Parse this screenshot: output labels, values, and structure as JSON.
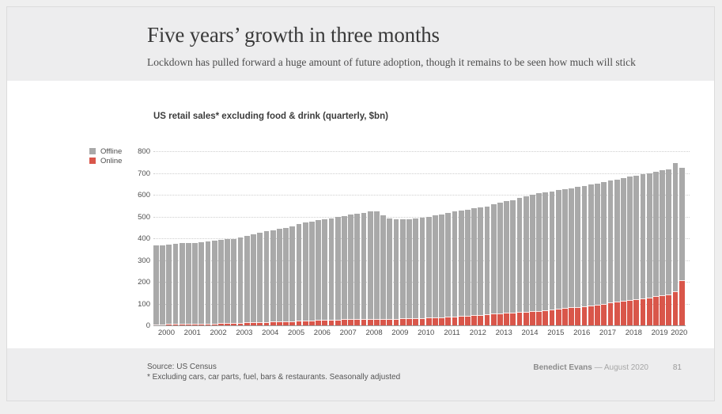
{
  "slide": {
    "header": {
      "title": "Five years’ growth in three months",
      "subtitle": "Lockdown has pulled forward a huge amount of future adoption, though it remains to be seen how much will stick"
    },
    "footer": {
      "source_line1": "Source: US Census",
      "source_line2": "* Excluding cars, car parts, fuel, bars & restaurants. Seasonally adjusted",
      "author": "Benedict Evans",
      "date": " — August 2020",
      "page_number": "81"
    }
  },
  "chart_data": {
    "type": "bar",
    "stacked": true,
    "title": "US retail sales* excluding food & drink (quarterly, $bn)",
    "xlabel": "",
    "ylabel": "",
    "ylim": [
      0,
      800
    ],
    "yticks": [
      0,
      100,
      200,
      300,
      400,
      500,
      600,
      700,
      800
    ],
    "grid": "horizontal-dotted",
    "legend_position": "outside-top-left",
    "x_unit": "quarter",
    "x_tick_labels": [
      "2000",
      "2001",
      "2002",
      "2003",
      "2004",
      "2005",
      "2006",
      "2007",
      "2008",
      "2009",
      "2010",
      "2011",
      "2012",
      "2013",
      "2014",
      "2015",
      "2016",
      "2017",
      "2018",
      "2019",
      "2020"
    ],
    "quarters_per_year": 4,
    "last_year_quarters": 2,
    "series": [
      {
        "name": "Offline",
        "color": "#a9a9a9",
        "values": [
          361,
          364,
          366,
          369,
          370,
          372,
          373,
          374,
          377,
          380,
          383,
          384,
          387,
          391,
          397,
          405,
          412,
          417,
          421,
          425,
          429,
          436,
          443,
          450,
          455,
          461,
          464,
          466,
          470,
          475,
          479,
          483,
          485,
          495,
          493,
          476,
          461,
          457,
          455,
          456,
          459,
          462,
          465,
          469,
          473,
          477,
          481,
          484,
          487,
          491,
          493,
          495,
          505,
          509,
          513,
          517,
          523,
          531,
          536,
          540,
          540,
          543,
          545,
          547,
          548,
          551,
          553,
          554,
          556,
          558,
          560,
          562,
          564,
          566,
          568,
          570,
          572,
          573,
          574,
          575,
          589,
          516
        ]
      },
      {
        "name": "Online",
        "color": "#d9564a",
        "values": [
          5,
          5,
          6,
          6,
          7,
          7,
          7,
          8,
          9,
          9,
          10,
          11,
          11,
          12,
          13,
          14,
          15,
          16,
          17,
          18,
          19,
          20,
          21,
          22,
          23,
          24,
          25,
          26,
          27,
          28,
          29,
          29,
          30,
          30,
          30,
          29,
          29,
          30,
          31,
          32,
          33,
          34,
          35,
          36,
          37,
          39,
          41,
          43,
          45,
          47,
          49,
          51,
          53,
          55,
          57,
          59,
          61,
          63,
          65,
          67,
          70,
          73,
          76,
          79,
          82,
          85,
          88,
          92,
          96,
          100,
          104,
          108,
          112,
          116,
          120,
          124,
          128,
          133,
          138,
          143,
          155,
          208
        ]
      }
    ]
  }
}
